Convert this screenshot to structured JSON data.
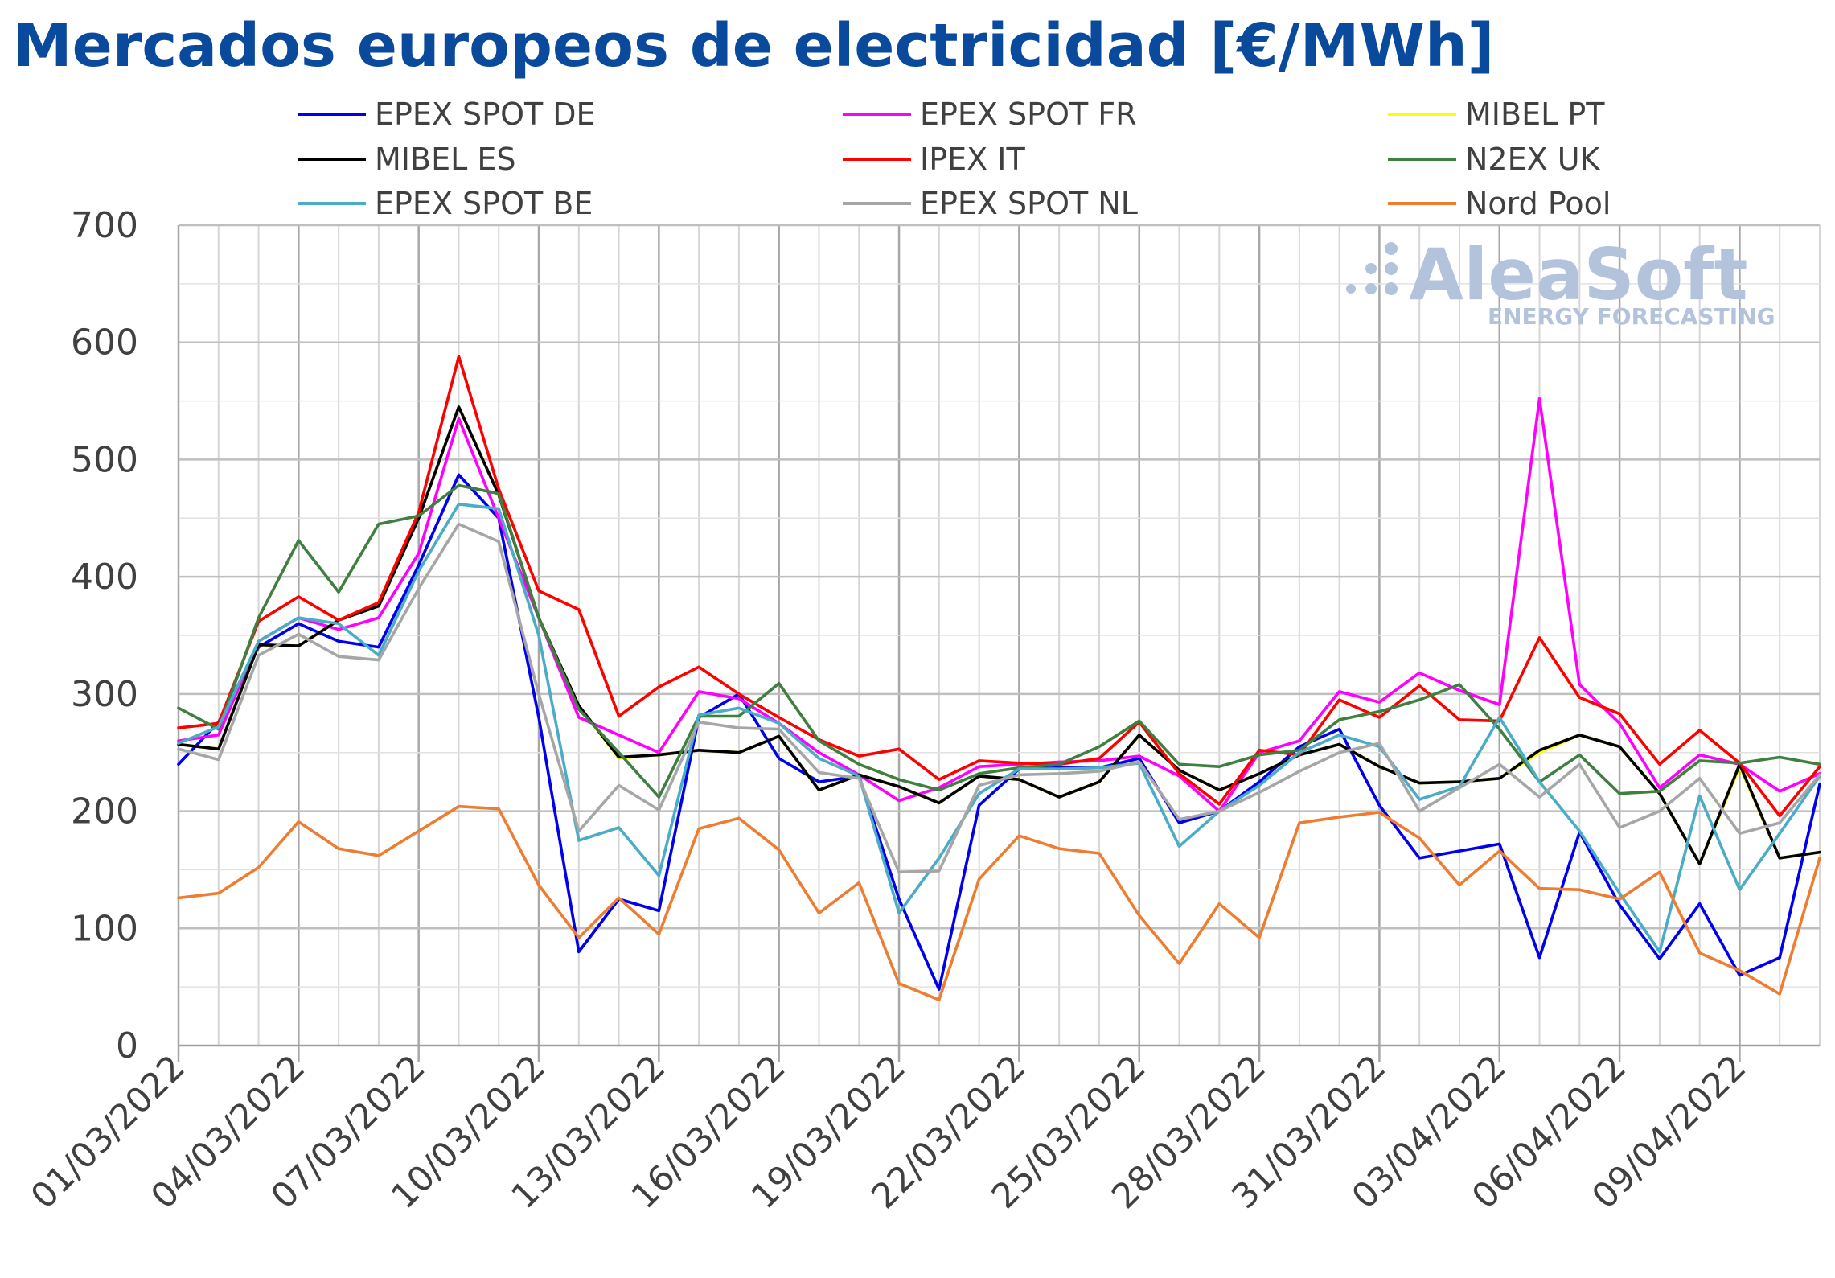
{
  "chart_data": {
    "type": "line",
    "title": "Mercados europeos de electricidad [€/MWh]",
    "xlabel": "",
    "ylabel": "",
    "ylim": [
      0,
      700
    ],
    "yticks": [
      0,
      100,
      200,
      300,
      400,
      500,
      600,
      700
    ],
    "grid": true,
    "legend_position": "top",
    "x": [
      "01/03/2022",
      "02/03/2022",
      "03/03/2022",
      "04/03/2022",
      "05/03/2022",
      "06/03/2022",
      "07/03/2022",
      "08/03/2022",
      "09/03/2022",
      "10/03/2022",
      "11/03/2022",
      "12/03/2022",
      "13/03/2022",
      "14/03/2022",
      "15/03/2022",
      "16/03/2022",
      "17/03/2022",
      "18/03/2022",
      "19/03/2022",
      "20/03/2022",
      "21/03/2022",
      "22/03/2022",
      "23/03/2022",
      "24/03/2022",
      "25/03/2022",
      "26/03/2022",
      "27/03/2022",
      "28/03/2022",
      "29/03/2022",
      "30/03/2022",
      "31/03/2022",
      "01/04/2022",
      "02/04/2022",
      "03/04/2022",
      "04/04/2022",
      "05/04/2022",
      "06/04/2022",
      "07/04/2022",
      "08/04/2022",
      "09/04/2022",
      "10/04/2022",
      "11/04/2022"
    ],
    "x_tick_labels": [
      "01/03/2022",
      "04/03/2022",
      "07/03/2022",
      "10/03/2022",
      "13/03/2022",
      "16/03/2022",
      "19/03/2022",
      "22/03/2022",
      "25/03/2022",
      "28/03/2022",
      "31/03/2022",
      "03/04/2022",
      "06/04/2022",
      "09/04/2022"
    ],
    "series": [
      {
        "name": "EPEX SPOT DE",
        "color": "#0000ee",
        "values": [
          240,
          276,
          340,
          360,
          345,
          340,
          410,
          487,
          450,
          280,
          80,
          125,
          115,
          280,
          300,
          245,
          225,
          230,
          125,
          48,
          205,
          236,
          237,
          237,
          245,
          190,
          200,
          225,
          255,
          270,
          205,
          160,
          166,
          172,
          75,
          182,
          120,
          74,
          121,
          60,
          75,
          223
        ]
      },
      {
        "name": "EPEX SPOT FR",
        "color": "#ff00ff",
        "values": [
          260,
          265,
          345,
          365,
          355,
          365,
          420,
          535,
          450,
          365,
          280,
          265,
          250,
          302,
          296,
          275,
          250,
          231,
          209,
          220,
          238,
          240,
          242,
          243,
          247,
          230,
          200,
          250,
          260,
          302,
          293,
          318,
          303,
          291,
          552,
          308,
          275,
          220,
          248,
          240,
          217,
          232
        ]
      },
      {
        "name": "MIBEL PT",
        "color": "#ffff00",
        "values": [
          257,
          253,
          342,
          341,
          363,
          375,
          450,
          545,
          470,
          365,
          290,
          245,
          248,
          252,
          250,
          264,
          218,
          231,
          221,
          207,
          230,
          227,
          212,
          225,
          265,
          235,
          218,
          232,
          248,
          257,
          238,
          224,
          225,
          228,
          250,
          265,
          255,
          215,
          155,
          238,
          160,
          165
        ]
      },
      {
        "name": "MIBEL ES",
        "color": "#000000",
        "values": [
          257,
          253,
          342,
          341,
          363,
          375,
          450,
          545,
          470,
          365,
          290,
          246,
          248,
          252,
          250,
          264,
          218,
          231,
          221,
          207,
          230,
          227,
          212,
          225,
          265,
          235,
          218,
          232,
          248,
          257,
          238,
          224,
          225,
          228,
          252,
          265,
          255,
          215,
          155,
          240,
          160,
          165
        ]
      },
      {
        "name": "IPEX IT",
        "color": "#ff0000",
        "values": [
          271,
          275,
          362,
          383,
          363,
          378,
          455,
          588,
          475,
          388,
          372,
          281,
          306,
          323,
          300,
          280,
          261,
          247,
          253,
          227,
          243,
          241,
          240,
          245,
          276,
          232,
          206,
          252,
          248,
          295,
          280,
          307,
          278,
          277,
          348,
          297,
          283,
          240,
          269,
          241,
          196,
          238
        ]
      },
      {
        "name": "N2EX UK",
        "color": "#3f7f3f",
        "values": [
          288,
          270,
          365,
          431,
          387,
          445,
          452,
          478,
          471,
          365,
          287,
          250,
          212,
          281,
          281,
          309,
          260,
          240,
          227,
          218,
          232,
          237,
          240,
          255,
          277,
          240,
          238,
          248,
          252,
          278,
          285,
          295,
          308,
          270,
          225,
          248,
          215,
          217,
          243,
          241,
          246,
          240
        ]
      },
      {
        "name": "EPEX SPOT BE",
        "color": "#4aacc6",
        "values": [
          258,
          272,
          345,
          365,
          360,
          333,
          405,
          462,
          458,
          350,
          175,
          186,
          145,
          282,
          288,
          275,
          245,
          230,
          113,
          160,
          215,
          236,
          236,
          237,
          241,
          170,
          200,
          222,
          250,
          265,
          255,
          210,
          221,
          280,
          225,
          183,
          130,
          80,
          213,
          133,
          181,
          230
        ]
      },
      {
        "name": "EPEX SPOT NL",
        "color": "#a6a6a6",
        "values": [
          253,
          244,
          333,
          351,
          332,
          329,
          390,
          445,
          430,
          300,
          183,
          222,
          201,
          276,
          271,
          270,
          233,
          228,
          148,
          149,
          222,
          231,
          232,
          234,
          242,
          193,
          200,
          216,
          234,
          250,
          258,
          200,
          220,
          240,
          212,
          240,
          186,
          200,
          228,
          181,
          190,
          231
        ]
      },
      {
        "name": "Nord Pool",
        "color": "#ed7d31",
        "values": [
          126,
          130,
          152,
          191,
          168,
          162,
          183,
          204,
          202,
          137,
          92,
          126,
          95,
          185,
          194,
          167,
          113,
          139,
          53,
          39,
          142,
          179,
          168,
          164,
          111,
          70,
          121,
          92,
          190,
          195,
          199,
          177,
          137,
          166,
          134,
          133,
          125,
          148,
          79,
          64,
          44,
          160
        ]
      }
    ]
  },
  "logo": {
    "name": "AleaSoft",
    "tagline": "ENERGY FORECASTING"
  }
}
